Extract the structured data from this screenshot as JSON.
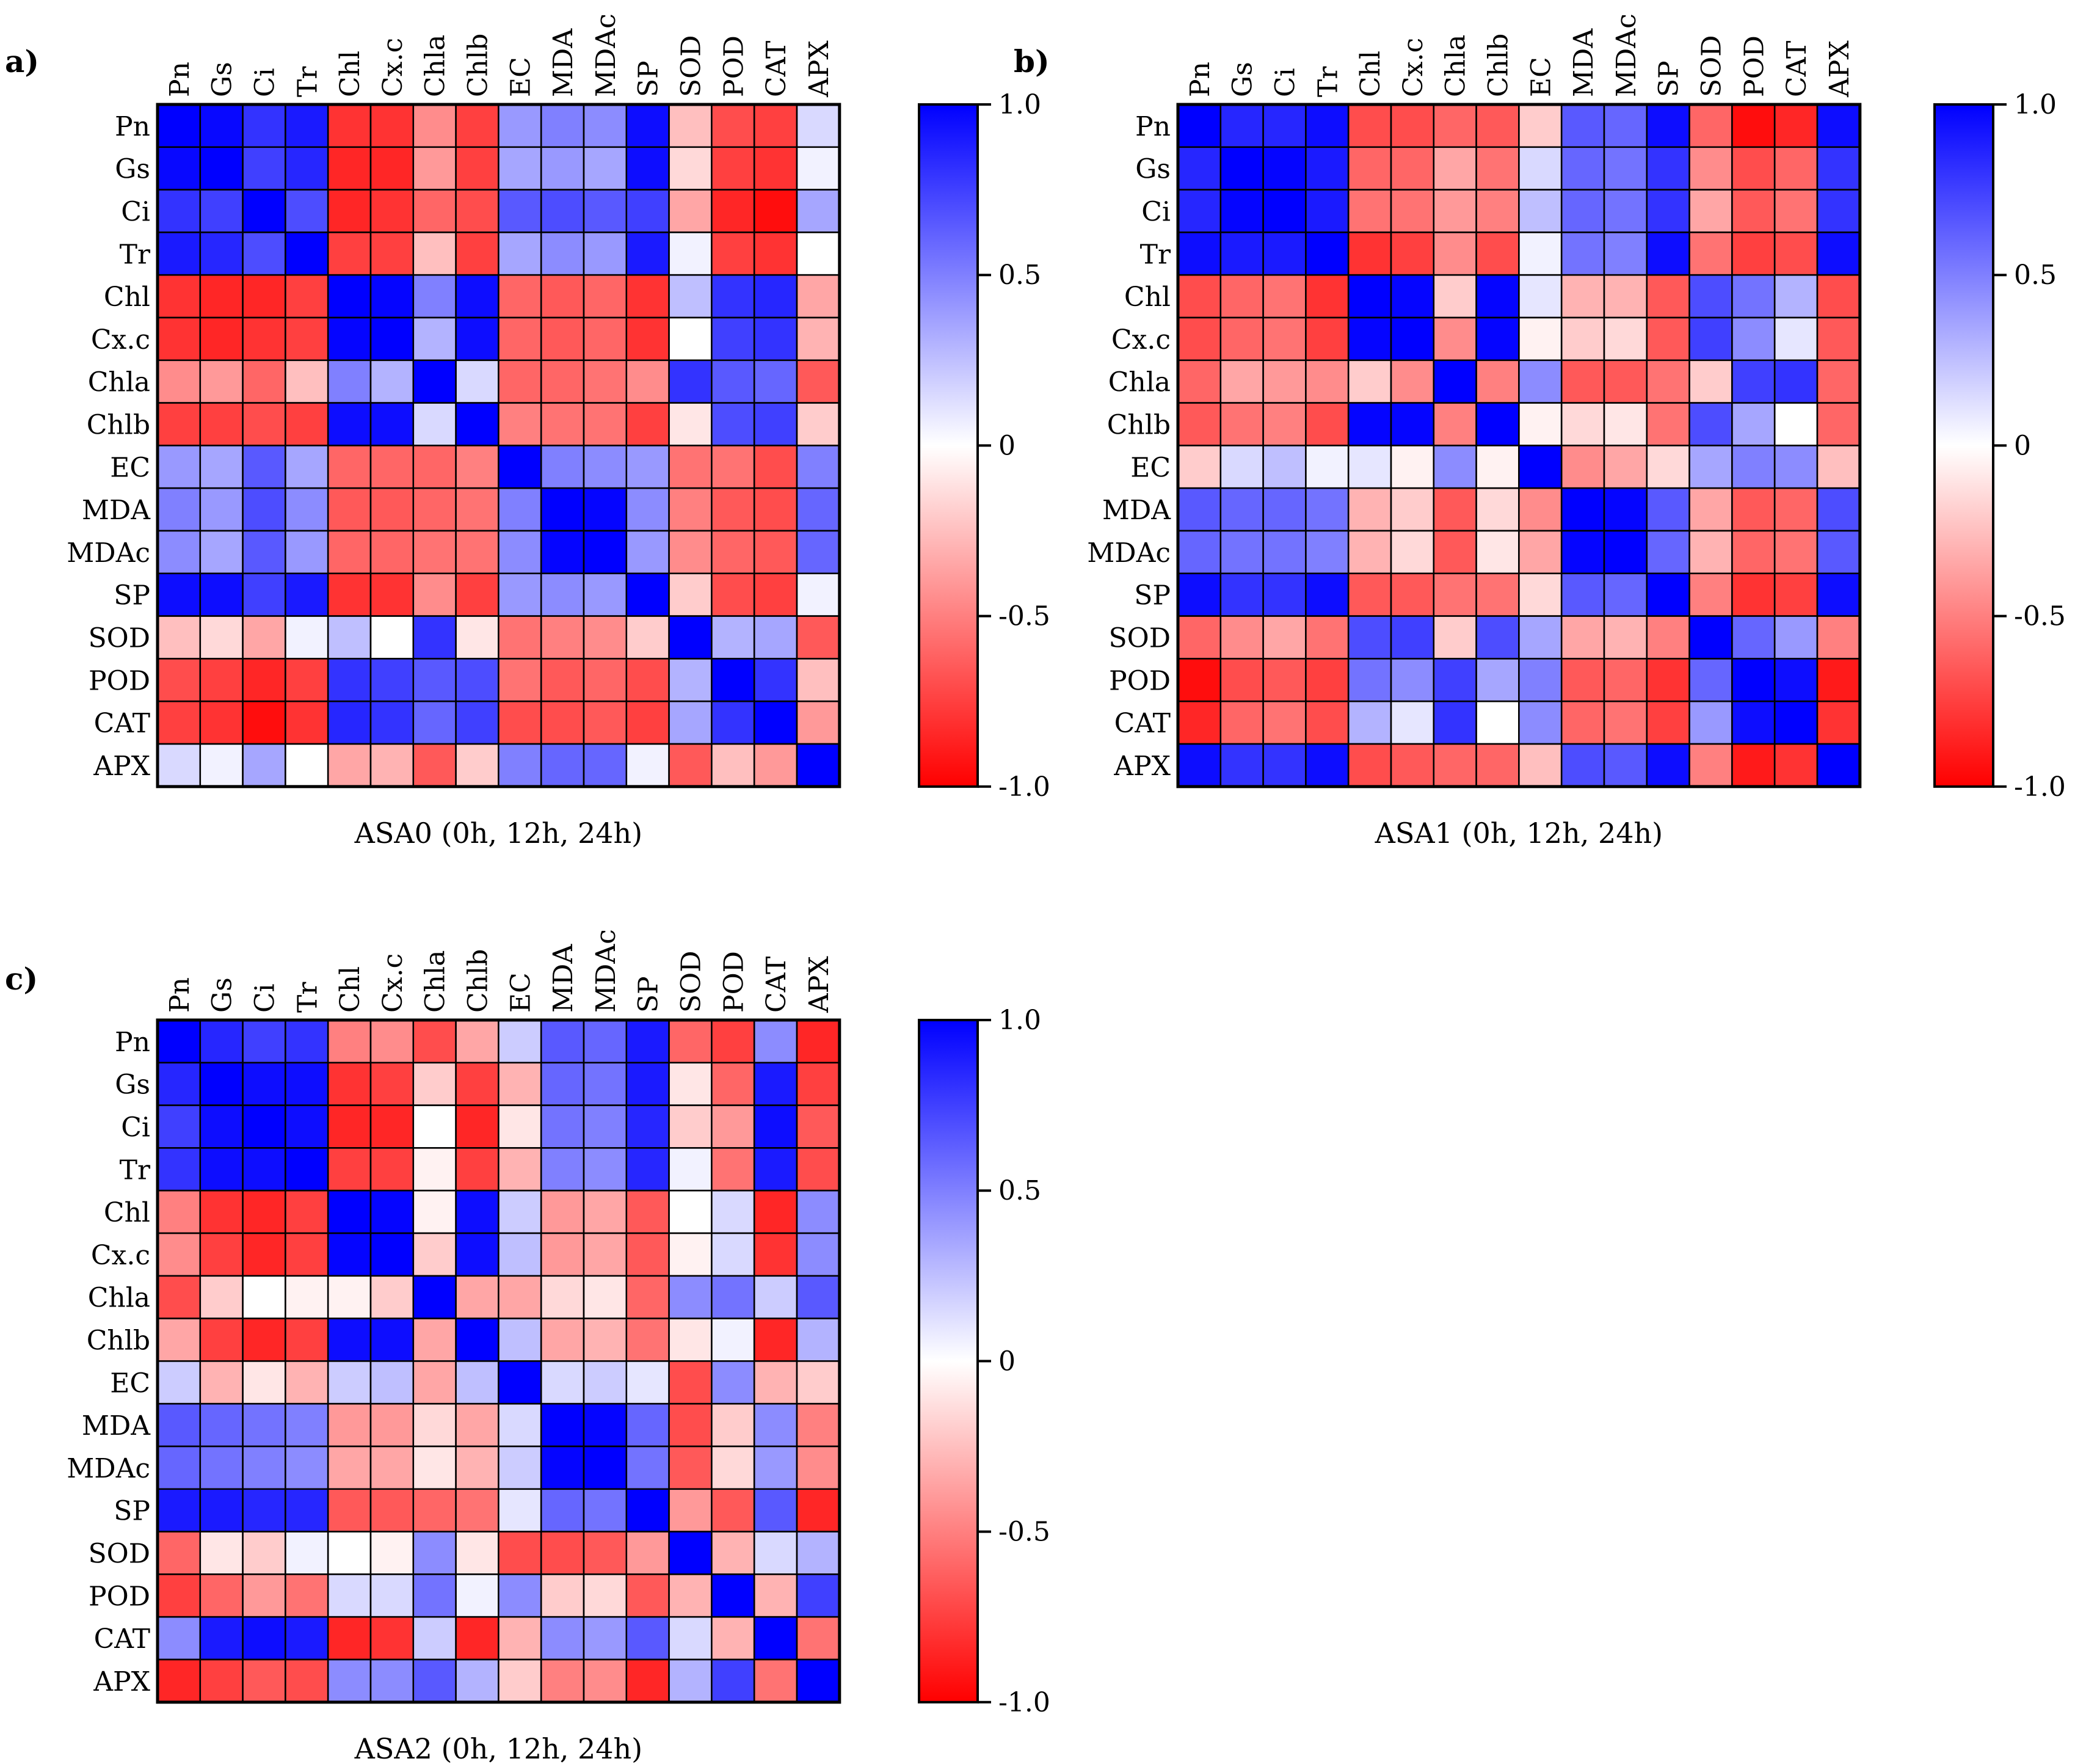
{
  "figure": {
    "colorbar_ticks": [
      "1.0",
      "0.5",
      "0",
      "-0.5",
      "-1.0"
    ],
    "colors": {
      "positive": "#0000ff",
      "negative": "#ff0000",
      "neutral": "#ffffff",
      "grid": "#000000"
    }
  },
  "chart_data": [
    {
      "type": "heatmap",
      "panel_label": "a)",
      "title": "ASA0 (0h, 12h, 24h)",
      "variables": [
        "Pn",
        "Gs",
        "Ci",
        "Tr",
        "Chl",
        "Cx.c",
        "Chla",
        "Chlb",
        "EC",
        "MDA",
        "MDAc",
        "SP",
        "SOD",
        "POD",
        "CAT",
        "APX"
      ],
      "value_range": [
        -1.0,
        1.0
      ],
      "matrix": [
        [
          1,
          0.97,
          0.8,
          0.9,
          -0.8,
          -0.8,
          -0.45,
          -0.75,
          0.4,
          0.5,
          0.45,
          0.95,
          -0.25,
          -0.7,
          -0.75,
          0.15
        ],
        [
          0.97,
          1,
          0.75,
          0.85,
          -0.85,
          -0.85,
          -0.4,
          -0.75,
          0.35,
          0.4,
          0.35,
          0.95,
          -0.15,
          -0.75,
          -0.8,
          0.05
        ],
        [
          0.8,
          0.75,
          1,
          0.7,
          -0.85,
          -0.8,
          -0.6,
          -0.7,
          0.65,
          0.7,
          0.65,
          0.75,
          -0.35,
          -0.85,
          -0.95,
          0.35
        ],
        [
          0.9,
          0.85,
          0.7,
          1,
          -0.75,
          -0.75,
          -0.25,
          -0.75,
          0.35,
          0.45,
          0.4,
          0.9,
          0.05,
          -0.75,
          -0.8,
          0
        ],
        [
          -0.8,
          -0.85,
          -0.85,
          -0.75,
          1,
          0.98,
          0.5,
          0.95,
          -0.6,
          -0.65,
          -0.6,
          -0.8,
          0.25,
          0.8,
          0.85,
          -0.35
        ],
        [
          -0.8,
          -0.85,
          -0.8,
          -0.75,
          0.98,
          1,
          0.3,
          0.95,
          -0.6,
          -0.65,
          -0.6,
          -0.8,
          0,
          0.75,
          0.8,
          -0.3
        ],
        [
          -0.45,
          -0.4,
          -0.6,
          -0.25,
          0.5,
          0.3,
          1,
          0.15,
          -0.6,
          -0.6,
          -0.55,
          -0.45,
          0.8,
          0.65,
          0.6,
          -0.65
        ],
        [
          -0.75,
          -0.75,
          -0.7,
          -0.75,
          0.95,
          0.95,
          0.15,
          1,
          -0.5,
          -0.55,
          -0.55,
          -0.75,
          -0.1,
          0.7,
          0.75,
          -0.2
        ],
        [
          0.4,
          0.35,
          0.65,
          0.35,
          -0.6,
          -0.6,
          -0.6,
          -0.5,
          1,
          0.5,
          0.45,
          0.4,
          -0.55,
          -0.55,
          -0.7,
          0.5
        ],
        [
          0.5,
          0.4,
          0.7,
          0.45,
          -0.65,
          -0.65,
          -0.6,
          -0.55,
          0.5,
          1,
          0.98,
          0.45,
          -0.5,
          -0.65,
          -0.7,
          0.6
        ],
        [
          0.45,
          0.35,
          0.65,
          0.4,
          -0.6,
          -0.6,
          -0.55,
          -0.55,
          0.45,
          0.98,
          1,
          0.4,
          -0.45,
          -0.6,
          -0.65,
          0.6
        ],
        [
          0.95,
          0.95,
          0.75,
          0.9,
          -0.8,
          -0.8,
          -0.45,
          -0.75,
          0.4,
          0.45,
          0.4,
          1,
          -0.2,
          -0.7,
          -0.75,
          0.05
        ],
        [
          -0.25,
          -0.15,
          -0.35,
          0.05,
          0.25,
          0,
          0.8,
          -0.1,
          -0.55,
          -0.5,
          -0.45,
          -0.2,
          1,
          0.3,
          0.35,
          -0.65
        ],
        [
          -0.7,
          -0.75,
          -0.85,
          -0.75,
          0.8,
          0.75,
          0.65,
          0.7,
          -0.55,
          -0.65,
          -0.6,
          -0.7,
          0.3,
          1,
          0.8,
          -0.25
        ],
        [
          -0.75,
          -0.8,
          -0.95,
          -0.8,
          0.85,
          0.8,
          0.6,
          0.75,
          -0.7,
          -0.7,
          -0.65,
          -0.75,
          0.35,
          0.8,
          1,
          -0.4
        ],
        [
          0.15,
          0.05,
          0.35,
          0,
          -0.35,
          -0.3,
          -0.65,
          -0.2,
          0.5,
          0.6,
          0.6,
          0.05,
          -0.65,
          -0.25,
          -0.4,
          1
        ]
      ]
    },
    {
      "type": "heatmap",
      "panel_label": "b)",
      "title": "ASA1 (0h, 12h, 24h)",
      "variables": [
        "Pn",
        "Gs",
        "Ci",
        "Tr",
        "Chl",
        "Cx.c",
        "Chla",
        "Chlb",
        "EC",
        "MDA",
        "MDAc",
        "SP",
        "SOD",
        "POD",
        "CAT",
        "APX"
      ],
      "value_range": [
        -1.0,
        1.0
      ],
      "matrix": [
        [
          1,
          0.85,
          0.85,
          0.95,
          -0.7,
          -0.7,
          -0.6,
          -0.65,
          -0.2,
          0.65,
          0.6,
          0.95,
          -0.6,
          -0.95,
          -0.85,
          0.95
        ],
        [
          0.85,
          1,
          0.98,
          0.9,
          -0.6,
          -0.6,
          -0.35,
          -0.55,
          0.15,
          0.6,
          0.55,
          0.8,
          -0.45,
          -0.7,
          -0.6,
          0.8
        ],
        [
          0.85,
          0.98,
          1,
          0.9,
          -0.55,
          -0.55,
          -0.4,
          -0.5,
          0.25,
          0.6,
          0.55,
          0.8,
          -0.35,
          -0.65,
          -0.55,
          0.8
        ],
        [
          0.95,
          0.9,
          0.9,
          1,
          -0.8,
          -0.75,
          -0.45,
          -0.7,
          0.05,
          0.55,
          0.5,
          0.95,
          -0.55,
          -0.75,
          -0.7,
          0.95
        ],
        [
          -0.7,
          -0.6,
          -0.55,
          -0.8,
          1,
          0.98,
          -0.2,
          0.98,
          0.1,
          -0.3,
          -0.3,
          -0.65,
          0.7,
          0.55,
          0.3,
          -0.7
        ],
        [
          -0.7,
          -0.6,
          -0.55,
          -0.75,
          0.98,
          1,
          -0.45,
          0.98,
          -0.05,
          -0.2,
          -0.15,
          -0.65,
          0.75,
          0.45,
          0.1,
          -0.65
        ],
        [
          -0.6,
          -0.35,
          -0.4,
          -0.45,
          -0.2,
          -0.45,
          1,
          -0.5,
          0.45,
          -0.65,
          -0.65,
          -0.55,
          -0.2,
          0.75,
          0.8,
          -0.6
        ],
        [
          -0.65,
          -0.55,
          -0.5,
          -0.7,
          0.98,
          0.98,
          -0.5,
          1,
          -0.05,
          -0.15,
          -0.1,
          -0.55,
          0.7,
          0.35,
          0,
          -0.6
        ],
        [
          -0.2,
          0.15,
          0.25,
          0.05,
          0.1,
          -0.05,
          0.45,
          -0.05,
          1,
          -0.45,
          -0.35,
          -0.15,
          0.35,
          0.5,
          0.45,
          -0.25
        ],
        [
          0.65,
          0.6,
          0.6,
          0.55,
          -0.3,
          -0.2,
          -0.65,
          -0.15,
          -0.45,
          1,
          0.98,
          0.65,
          -0.35,
          -0.65,
          -0.6,
          0.7
        ],
        [
          0.6,
          0.55,
          0.55,
          0.5,
          -0.3,
          -0.15,
          -0.65,
          -0.1,
          -0.35,
          0.98,
          1,
          0.6,
          -0.3,
          -0.6,
          -0.55,
          0.65
        ],
        [
          0.95,
          0.8,
          0.8,
          0.95,
          -0.65,
          -0.65,
          -0.55,
          -0.55,
          -0.15,
          0.65,
          0.6,
          1,
          -0.5,
          -0.8,
          -0.75,
          0.95
        ],
        [
          -0.6,
          -0.45,
          -0.35,
          -0.55,
          0.7,
          0.75,
          -0.2,
          0.7,
          0.35,
          -0.35,
          -0.3,
          -0.5,
          1,
          0.6,
          0.4,
          -0.5
        ],
        [
          -0.95,
          -0.7,
          -0.65,
          -0.75,
          0.55,
          0.45,
          0.75,
          0.35,
          0.5,
          -0.65,
          -0.6,
          -0.8,
          0.6,
          1,
          0.95,
          -0.9
        ],
        [
          -0.85,
          -0.6,
          -0.55,
          -0.7,
          0.3,
          0.1,
          0.8,
          0,
          0.45,
          -0.6,
          -0.55,
          -0.75,
          0.4,
          0.95,
          1,
          -0.8
        ],
        [
          0.95,
          0.8,
          0.8,
          0.95,
          -0.7,
          -0.65,
          -0.6,
          -0.6,
          -0.25,
          0.7,
          0.65,
          0.95,
          -0.5,
          -0.9,
          -0.8,
          1
        ]
      ]
    },
    {
      "type": "heatmap",
      "panel_label": "c)",
      "title": "ASA2 (0h, 12h, 24h)",
      "variables": [
        "Pn",
        "Gs",
        "Ci",
        "Tr",
        "Chl",
        "Cx.c",
        "Chla",
        "Chlb",
        "EC",
        "MDA",
        "MDAc",
        "SP",
        "SOD",
        "POD",
        "CAT",
        "APX"
      ],
      "value_range": [
        -1.0,
        1.0
      ],
      "matrix": [
        [
          1,
          0.85,
          0.75,
          0.8,
          -0.5,
          -0.45,
          -0.7,
          -0.35,
          0.2,
          0.65,
          0.6,
          0.9,
          -0.6,
          -0.75,
          0.45,
          -0.85
        ],
        [
          0.85,
          1,
          0.95,
          0.95,
          -0.8,
          -0.75,
          -0.2,
          -0.75,
          -0.3,
          0.6,
          0.55,
          0.9,
          -0.1,
          -0.6,
          0.9,
          -0.75
        ],
        [
          0.75,
          0.95,
          1,
          0.95,
          -0.85,
          -0.85,
          0,
          -0.85,
          -0.1,
          0.55,
          0.5,
          0.85,
          -0.2,
          -0.4,
          0.95,
          -0.65
        ],
        [
          0.8,
          0.95,
          0.95,
          1,
          -0.75,
          -0.75,
          -0.05,
          -0.75,
          -0.3,
          0.5,
          0.45,
          0.85,
          0.05,
          -0.55,
          0.9,
          -0.7
        ],
        [
          -0.5,
          -0.8,
          -0.85,
          -0.75,
          1,
          0.98,
          -0.05,
          0.95,
          0.2,
          -0.4,
          -0.35,
          -0.65,
          0,
          0.15,
          -0.85,
          0.45
        ],
        [
          -0.45,
          -0.75,
          -0.85,
          -0.75,
          0.98,
          1,
          -0.2,
          0.95,
          0.25,
          -0.4,
          -0.35,
          -0.65,
          -0.05,
          0.15,
          -0.8,
          0.45
        ],
        [
          -0.7,
          -0.2,
          0,
          -0.05,
          -0.05,
          -0.2,
          1,
          -0.35,
          -0.35,
          -0.15,
          -0.1,
          -0.6,
          0.45,
          0.55,
          0.2,
          0.65
        ],
        [
          -0.35,
          -0.75,
          -0.85,
          -0.75,
          0.95,
          0.95,
          -0.35,
          1,
          0.25,
          -0.35,
          -0.3,
          -0.55,
          -0.1,
          0.05,
          -0.85,
          0.3
        ],
        [
          0.2,
          -0.3,
          -0.1,
          -0.3,
          0.2,
          0.25,
          -0.35,
          0.25,
          1,
          0.15,
          0.2,
          0.1,
          -0.7,
          0.45,
          -0.3,
          -0.2
        ],
        [
          0.65,
          0.6,
          0.55,
          0.5,
          -0.4,
          -0.4,
          -0.15,
          -0.35,
          0.15,
          1,
          0.98,
          0.6,
          -0.7,
          -0.2,
          0.45,
          -0.5
        ],
        [
          0.6,
          0.55,
          0.5,
          0.45,
          -0.35,
          -0.35,
          -0.1,
          -0.3,
          0.2,
          0.98,
          1,
          0.55,
          -0.65,
          -0.15,
          0.4,
          -0.45
        ],
        [
          0.9,
          0.9,
          0.85,
          0.85,
          -0.65,
          -0.65,
          -0.6,
          -0.55,
          0.1,
          0.6,
          0.55,
          1,
          -0.4,
          -0.65,
          0.65,
          -0.85
        ],
        [
          -0.6,
          -0.1,
          -0.2,
          0.05,
          0,
          -0.05,
          0.45,
          -0.1,
          -0.7,
          -0.7,
          -0.65,
          -0.4,
          1,
          -0.3,
          0.15,
          0.3
        ],
        [
          -0.75,
          -0.6,
          -0.4,
          -0.55,
          0.15,
          0.15,
          0.55,
          0.05,
          0.45,
          -0.2,
          -0.15,
          -0.65,
          -0.3,
          1,
          -0.3,
          0.75
        ],
        [
          0.45,
          0.9,
          0.95,
          0.9,
          -0.85,
          -0.8,
          0.2,
          -0.85,
          -0.3,
          0.45,
          0.4,
          0.65,
          0.15,
          -0.3,
          1,
          -0.55
        ],
        [
          -0.85,
          -0.75,
          -0.65,
          -0.7,
          0.45,
          0.45,
          0.65,
          0.3,
          -0.2,
          -0.5,
          -0.45,
          -0.85,
          0.3,
          0.75,
          -0.55,
          1
        ]
      ]
    }
  ]
}
